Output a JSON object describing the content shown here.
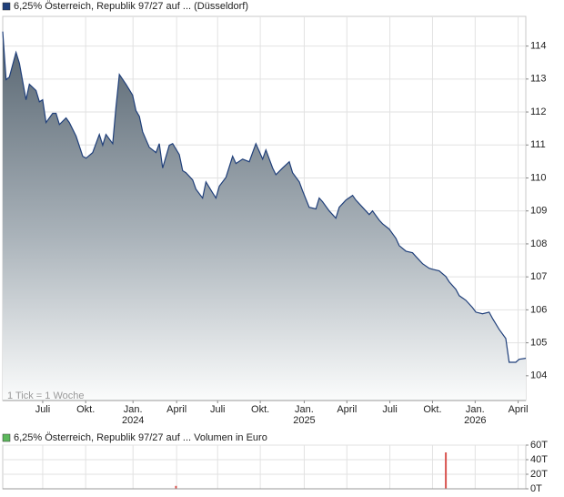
{
  "chart_data": [
    {
      "type": "area",
      "title": "6,25% Österreich, Republik 97/27 auf ... (Düsseldorf)",
      "annotation": "1 Tick = 1 Woche",
      "color": "#1f3f7a",
      "legend_color": "#1f3f7a",
      "x": [
        0,
        1,
        2,
        4,
        5,
        7,
        8,
        10,
        11,
        12,
        13,
        15,
        16,
        17,
        19,
        20,
        22,
        24,
        25,
        27,
        29,
        30,
        31,
        33,
        34,
        35,
        37,
        39,
        40,
        41,
        42,
        44,
        46,
        47,
        48,
        50,
        51,
        53,
        54,
        55,
        57,
        58,
        60,
        61,
        63,
        64,
        65,
        67,
        69,
        70,
        72,
        74,
        75,
        76,
        78,
        79,
        81,
        82,
        84,
        86,
        87,
        89,
        90,
        92,
        94,
        95,
        96,
        98,
        100,
        101,
        103,
        105,
        106,
        108,
        110,
        111,
        113,
        114,
        116,
        118,
        119,
        121,
        123,
        124,
        126,
        128,
        129,
        131,
        133,
        134,
        136,
        137,
        139,
        141,
        142,
        144,
        146,
        147,
        149,
        151,
        152,
        154,
        155,
        157
      ],
      "values": [
        114.44,
        112.98,
        113.06,
        113.81,
        113.48,
        112.37,
        112.84,
        112.65,
        112.31,
        112.37,
        111.68,
        111.96,
        111.96,
        111.62,
        111.82,
        111.68,
        111.27,
        110.66,
        110.6,
        110.77,
        111.32,
        110.99,
        111.32,
        111.04,
        112.15,
        113.14,
        112.84,
        112.51,
        112.04,
        111.87,
        111.4,
        110.93,
        110.77,
        111.04,
        110.3,
        110.99,
        111.04,
        110.71,
        110.22,
        110.16,
        109.94,
        109.66,
        109.39,
        109.88,
        109.55,
        109.39,
        109.75,
        110.02,
        110.66,
        110.44,
        110.57,
        110.49,
        110.77,
        111.04,
        110.57,
        110.85,
        110.3,
        110.1,
        110.3,
        110.49,
        110.16,
        109.88,
        109.61,
        109.11,
        109.06,
        109.39,
        109.28,
        109.0,
        108.78,
        109.11,
        109.33,
        109.47,
        109.33,
        109.11,
        108.89,
        109.0,
        108.72,
        108.61,
        108.45,
        108.17,
        107.95,
        107.78,
        107.73,
        107.62,
        107.4,
        107.26,
        107.23,
        107.18,
        107.01,
        106.85,
        106.62,
        106.43,
        106.29,
        106.07,
        105.93,
        105.88,
        105.93,
        105.74,
        105.41,
        105.13,
        104.41,
        104.41,
        104.5,
        104.53
      ],
      "xlim": [
        0,
        157
      ],
      "xticks": [
        {
          "value": 12.0,
          "label": "Juli"
        },
        {
          "value": 24.9,
          "label": "Okt."
        },
        {
          "value": 39.1,
          "label": "Jan.",
          "year": "2024"
        },
        {
          "value": 52.2,
          "label": "April"
        },
        {
          "value": 64.5,
          "label": "Juli"
        },
        {
          "value": 77.3,
          "label": "Okt."
        },
        {
          "value": 90.5,
          "label": "Jan.",
          "year": "2025"
        },
        {
          "value": 103.3,
          "label": "April"
        },
        {
          "value": 116.2,
          "label": "Juli"
        },
        {
          "value": 129.0,
          "label": "Okt."
        },
        {
          "value": 141.8,
          "label": "Jan.",
          "year": "2026"
        },
        {
          "value": 154.7,
          "label": "April"
        }
      ],
      "ylim": [
        103.25,
        114.9
      ],
      "yticks": [
        104,
        105,
        106,
        107,
        108,
        109,
        110,
        111,
        112,
        113,
        114
      ],
      "grid": true
    },
    {
      "type": "bar",
      "title": "6,25% Österreich, Republik 97/27 auf ... Volumen in Euro",
      "color": "#d9534f",
      "legend_color": "#5cb85c",
      "x": [
        52,
        133
      ],
      "values": [
        4,
        50
      ],
      "xlim": [
        0,
        157
      ],
      "ylim": [
        0,
        60
      ],
      "yticks": [
        {
          "value": 0,
          "label": "0T"
        },
        {
          "value": 20,
          "label": "20T"
        },
        {
          "value": 40,
          "label": "40T"
        },
        {
          "value": 60,
          "label": "60T"
        }
      ],
      "grid": true
    }
  ]
}
